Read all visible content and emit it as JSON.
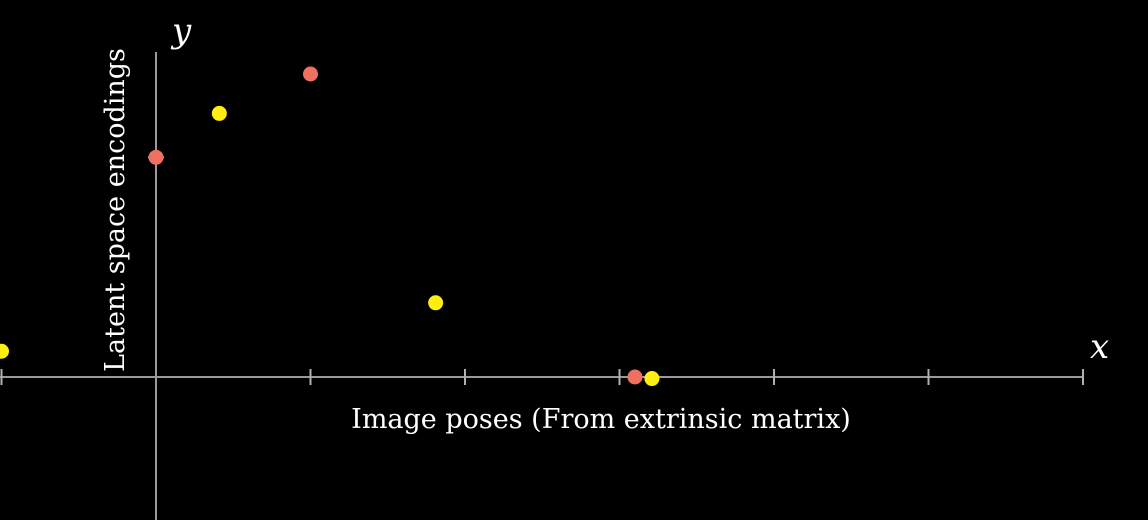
{
  "chart_data": {
    "type": "scatter",
    "xlabel": "Image poses (From extrinsic matrix)",
    "ylabel": "Latent space encodings",
    "x_axis_symbol": "x",
    "y_axis_symbol": "y",
    "xlim": [
      -1,
      6
    ],
    "ylim": [
      -1,
      2.1
    ],
    "xticks": [
      -1,
      0,
      1,
      2,
      3,
      4,
      5,
      6
    ],
    "grid": false,
    "colors": {
      "background": "#000000",
      "axis": "#9a9a9a",
      "red_points": "#f07060",
      "yellow_points": "#ffee10"
    },
    "series": [
      {
        "color": "#f07060",
        "points": [
          [
            0,
            1.45
          ],
          [
            1,
            2.0
          ],
          [
            3.1,
            0.0
          ]
        ]
      },
      {
        "color": "#ffee10",
        "points": [
          [
            -1,
            0.17
          ],
          [
            0.41,
            1.74
          ],
          [
            1.81,
            0.49
          ],
          [
            3.21,
            -0.01
          ]
        ]
      }
    ]
  }
}
